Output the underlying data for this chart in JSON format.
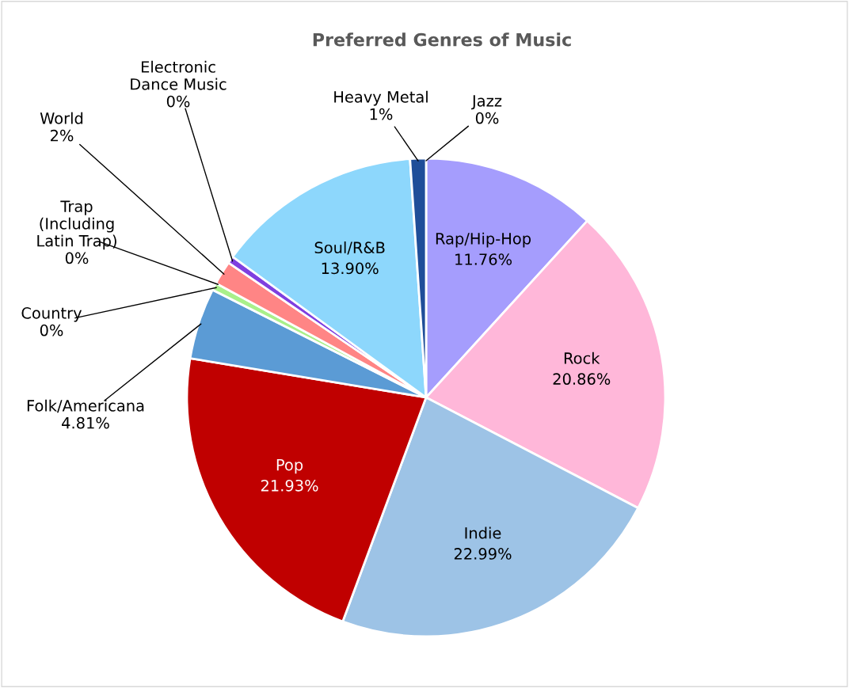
{
  "chart_data": {
    "type": "pie",
    "title": "Preferred Genres of Music",
    "categories": [
      "Rap/Hip-Hop",
      "Rock",
      "Indie",
      "Pop",
      "Folk/Americana",
      "Country",
      "Trap (Including Latin Trap)",
      "World",
      "Electronic Dance Music",
      "Soul/R&B",
      "Heavy Metal",
      "Jazz"
    ],
    "values": [
      11.76,
      20.86,
      22.99,
      21.93,
      4.81,
      0.49,
      0,
      1.6,
      0.49,
      13.9,
      1.07,
      0
    ],
    "value_labels": [
      "11.76%",
      "20.86%",
      "22.99%",
      "21.93%",
      "4.81%",
      "0%",
      "0%",
      "2%",
      "0%",
      "13.90%",
      "1%",
      "0%"
    ],
    "colors": [
      "#a59dfd",
      "#ffb7d9",
      "#9dc3e6",
      "#c00000",
      "#5b9bd5",
      "#a9f08a",
      "#f4b183",
      "#ff8585",
      "#7f3fe0",
      "#8dd7fc",
      "#1f4e99",
      "#404040"
    ]
  }
}
